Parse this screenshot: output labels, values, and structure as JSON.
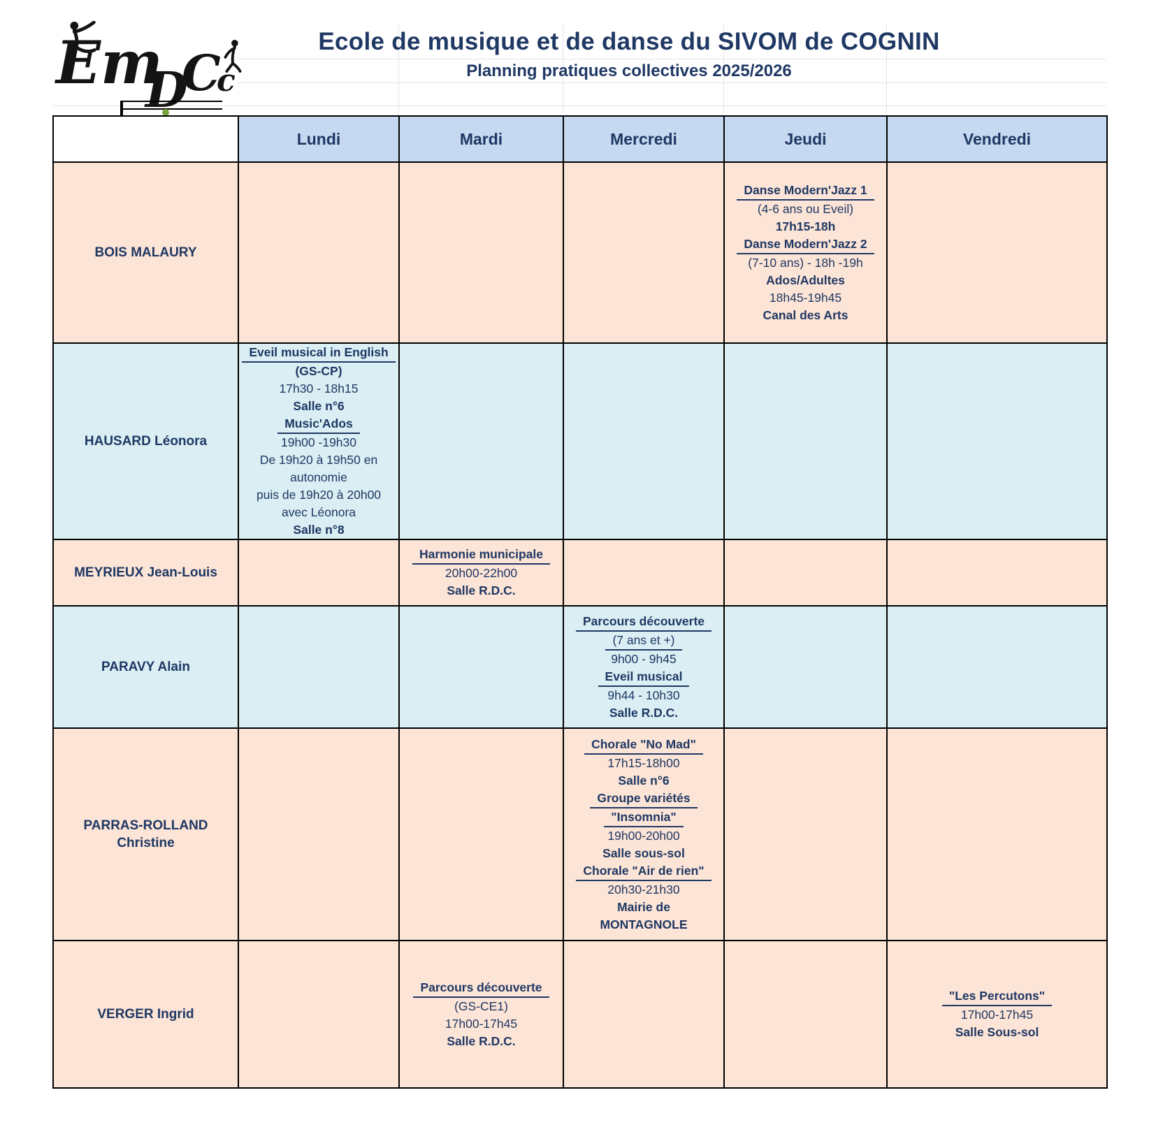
{
  "page": {
    "title": "Ecole de musique et de danse du SIVOM de COGNIN",
    "subtitle": "Planning pratiques collectives 2025/2026"
  },
  "logo": {
    "letters": [
      "Em",
      "D",
      "C",
      "c"
    ]
  },
  "colors": {
    "navy_text": "#1f3864",
    "row_peach": "#fce4d6",
    "row_blue": "#daeef3",
    "day_header_blue": "#c6d9f0",
    "border_black": "#000000",
    "note_green": "#7aa43c",
    "note_pink": "#f04fb0"
  },
  "table": {
    "day_headers": [
      "Lundi",
      "Mardi",
      "Mercredi",
      "Jeudi",
      "Vendredi"
    ],
    "day_keys": [
      "lundi",
      "mardi",
      "mercredi",
      "jeudi",
      "vendredi"
    ],
    "rows": [
      {
        "key": "bois-malaury",
        "teacher_lines": [
          "BOIS MALAURY"
        ],
        "color": "peach",
        "cells": {
          "jeudi": [
            {
              "t": "Danse Modern'Jazz 1",
              "b": true,
              "u": true
            },
            {
              "t": "(4-6 ans ou Eveil)"
            },
            {
              "t": "17h15-18h",
              "b": true
            },
            {
              "t": "Danse Modern'Jazz 2",
              "b": true,
              "u": true
            },
            {
              "t": "(7-10 ans) - 18h -19h"
            },
            {
              "t": "Ados/Adultes",
              "b": true
            },
            {
              "t": "18h45-19h45"
            },
            {
              "t": "Canal des Arts",
              "b": true
            }
          ]
        }
      },
      {
        "key": "hausard-leonora",
        "teacher_lines": [
          "HAUSARD Léonora"
        ],
        "color": "blue",
        "cells": {
          "lundi": [
            {
              "t": "Eveil musical in English",
              "b": true,
              "u": true
            },
            {
              "t": "(GS-CP)",
              "b": true
            },
            {
              "t": "17h30 - 18h15"
            },
            {
              "t": "Salle n°6",
              "b": true
            },
            {
              "t": "Music'Ados",
              "b": true,
              "u": true
            },
            {
              "t": "19h00 -19h30"
            },
            {
              "t": "De 19h20 à 19h50 en"
            },
            {
              "t": "autonomie"
            },
            {
              "t": "puis de 19h20 à 20h00"
            },
            {
              "t": "avec Léonora"
            },
            {
              "t": "Salle n°8",
              "b": true
            }
          ]
        }
      },
      {
        "key": "meyrieux-jean-louis",
        "teacher_lines": [
          "MEYRIEUX Jean-Louis"
        ],
        "color": "peach",
        "cells": {
          "mardi": [
            {
              "t": "Harmonie municipale",
              "b": true,
              "u": true
            },
            {
              "t": "20h00-22h00"
            },
            {
              "t": "Salle R.D.C.",
              "b": true
            }
          ]
        }
      },
      {
        "key": "paravy-alain",
        "teacher_lines": [
          "PARAVY Alain"
        ],
        "color": "blue",
        "cells": {
          "mercredi": [
            {
              "t": "Parcours découverte",
              "b": true,
              "u": true
            },
            {
              "t": "(7 ans et +)",
              "u": true
            },
            {
              "t": "9h00 - 9h45"
            },
            {
              "t": "Eveil musical",
              "b": true,
              "u": true
            },
            {
              "t": "9h44 - 10h30"
            },
            {
              "t": "Salle R.D.C.",
              "b": true
            }
          ]
        }
      },
      {
        "key": "parras-rolland-christine",
        "teacher_lines": [
          "PARRAS-ROLLAND",
          "Christine"
        ],
        "color": "peach",
        "cells": {
          "mercredi": [
            {
              "t": "Chorale \"No Mad\"",
              "b": true,
              "u": true
            },
            {
              "t": "17h15-18h00"
            },
            {
              "t": "Salle n°6",
              "b": true
            },
            {
              "t": "Groupe variétés",
              "b": true,
              "u": true
            },
            {
              "t": "\"Insomnia\"",
              "b": true,
              "u": true
            },
            {
              "t": "19h00-20h00"
            },
            {
              "t": "Salle sous-sol",
              "b": true
            },
            {
              "t": "Chorale \"Air de rien\"",
              "b": true,
              "u": true
            },
            {
              "t": "20h30-21h30"
            },
            {
              "t": "Mairie de",
              "b": true
            },
            {
              "t": "MONTAGNOLE",
              "b": true
            }
          ]
        }
      },
      {
        "key": "verger-ingrid",
        "teacher_lines": [
          "VERGER Ingrid"
        ],
        "color": "peach",
        "cells": {
          "mardi": [
            {
              "t": "Parcours découverte",
              "b": true,
              "u": true
            },
            {
              "t": "(GS-CE1)"
            },
            {
              "t": "17h00-17h45"
            },
            {
              "t": "Salle R.D.C.",
              "b": true
            }
          ],
          "vendredi": [
            {
              "t": "\"Les Percutons\"",
              "b": true,
              "u": true
            },
            {
              "t": "17h00-17h45"
            },
            {
              "t": "Salle Sous-sol",
              "b": true
            }
          ]
        }
      }
    ]
  }
}
